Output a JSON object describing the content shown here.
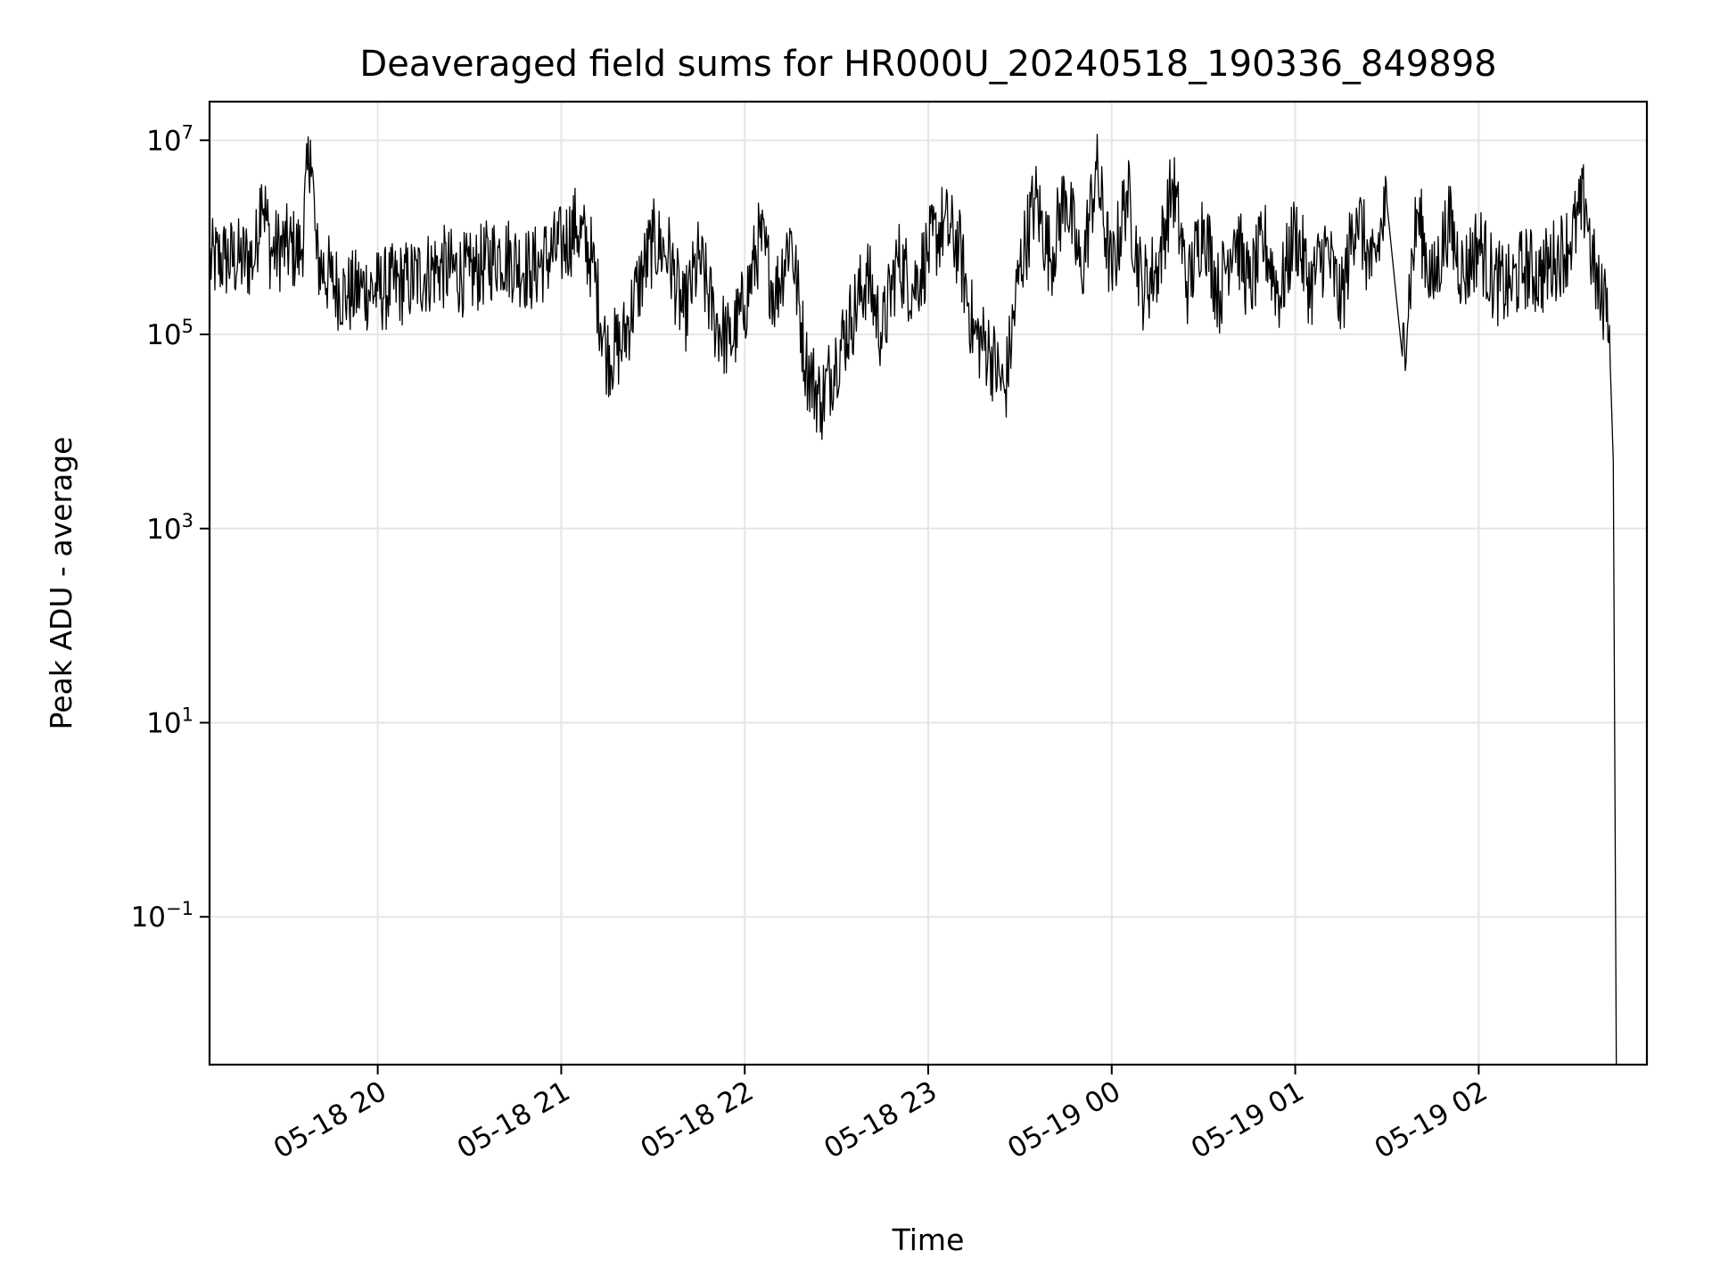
{
  "chart_data": {
    "type": "line",
    "title": "Deaveraged field sums for HR000U_20240518_190336_849898",
    "xlabel": "Time",
    "ylabel": "Peak ADU - average",
    "yscale": "log",
    "grid": true,
    "xlim": [
      "05-18 19:05",
      "05-19 02:55"
    ],
    "ylim": [
      0.003,
      25000000
    ],
    "x_ticks": [
      "05-18 20",
      "05-18 21",
      "05-18 22",
      "05-18 23",
      "05-19 00",
      "05-19 01",
      "05-19 02"
    ],
    "y_ticks": [
      {
        "base": "10",
        "exp": "7",
        "value": 10000000
      },
      {
        "base": "10",
        "exp": "5",
        "value": 100000
      },
      {
        "base": "10",
        "exp": "3",
        "value": 1000
      },
      {
        "base": "10",
        "exp": "1",
        "value": 10
      },
      {
        "base": "10",
        "exp": "−1",
        "value": 0.1
      }
    ],
    "series": [
      {
        "color": "#000000",
        "sampled_points": [
          [
            "05-18 19:05",
            550000
          ],
          [
            "05-18 19:10",
            600000
          ],
          [
            "05-18 19:15",
            580000
          ],
          [
            "05-18 19:20",
            620000
          ],
          [
            "05-18 19:22",
            3500000
          ],
          [
            "05-18 19:25",
            700000
          ],
          [
            "05-18 19:30",
            800000
          ],
          [
            "05-18 19:35",
            700000
          ],
          [
            "05-18 19:38",
            10000000
          ],
          [
            "05-18 19:40",
            600000
          ],
          [
            "05-18 19:45",
            350000
          ],
          [
            "05-18 19:50",
            250000
          ],
          [
            "05-18 19:55",
            300000
          ],
          [
            "05-18 20:00",
            280000
          ],
          [
            "05-18 20:10",
            350000
          ],
          [
            "05-18 20:20",
            500000
          ],
          [
            "05-18 20:30",
            400000
          ],
          [
            "05-18 20:40",
            700000
          ],
          [
            "05-18 20:50",
            450000
          ],
          [
            "05-18 21:00",
            800000
          ],
          [
            "05-18 21:05",
            1300000
          ],
          [
            "05-18 21:10",
            600000
          ],
          [
            "05-18 21:15",
            60000
          ],
          [
            "05-18 21:20",
            80000
          ],
          [
            "05-18 21:25",
            300000
          ],
          [
            "05-18 21:30",
            900000
          ],
          [
            "05-18 21:35",
            700000
          ],
          [
            "05-18 21:40",
            150000
          ],
          [
            "05-18 21:45",
            600000
          ],
          [
            "05-18 21:50",
            150000
          ],
          [
            "05-18 21:55",
            80000
          ],
          [
            "05-18 22:00",
            200000
          ],
          [
            "05-18 22:05",
            1000000
          ],
          [
            "05-18 22:10",
            250000
          ],
          [
            "05-18 22:15",
            1100000
          ],
          [
            "05-18 22:20",
            50000
          ],
          [
            "05-18 22:25",
            20000
          ],
          [
            "05-18 22:30",
            60000
          ],
          [
            "05-18 22:35",
            150000
          ],
          [
            "05-18 22:40",
            400000
          ],
          [
            "05-18 22:45",
            100000
          ],
          [
            "05-18 22:50",
            600000
          ],
          [
            "05-18 22:55",
            300000
          ],
          [
            "05-18 23:00",
            700000
          ],
          [
            "05-18 23:05",
            1400000
          ],
          [
            "05-18 23:10",
            800000
          ],
          [
            "05-18 23:15",
            100000
          ],
          [
            "05-18 23:20",
            70000
          ],
          [
            "05-18 23:25",
            25000
          ],
          [
            "05-18 23:30",
            500000
          ],
          [
            "05-18 23:35",
            2500000
          ],
          [
            "05-18 23:40",
            600000
          ],
          [
            "05-18 23:45",
            3000000
          ],
          [
            "05-18 23:50",
            400000
          ],
          [
            "05-18 23:55",
            5000000
          ],
          [
            "05-19 00:00",
            400000
          ],
          [
            "05-19 00:05",
            3000000
          ],
          [
            "05-19 00:10",
            300000
          ],
          [
            "05-19 00:15",
            500000
          ],
          [
            "05-19 00:20",
            3500000
          ],
          [
            "05-19 00:25",
            300000
          ],
          [
            "05-19 00:30",
            1500000
          ],
          [
            "05-19 00:35",
            250000
          ],
          [
            "05-19 00:40",
            1200000
          ],
          [
            "05-19 00:45",
            300000
          ],
          [
            "05-19 00:50",
            900000
          ],
          [
            "05-19 00:55",
            250000
          ],
          [
            "05-19 01:00",
            1200000
          ],
          [
            "05-19 01:05",
            300000
          ],
          [
            "05-19 01:10",
            800000
          ],
          [
            "05-19 01:15",
            200000
          ],
          [
            "05-19 01:20",
            2000000
          ],
          [
            "05-19 01:25",
            400000
          ],
          [
            "05-19 01:30",
            2200000
          ],
          [
            "05-19 01:35",
            60000
          ],
          [
            "05-19 01:40",
            1800000
          ],
          [
            "05-19 01:45",
            300000
          ],
          [
            "05-19 01:50",
            1500000
          ],
          [
            "05-19 01:55",
            400000
          ],
          [
            "05-19 02:00",
            900000
          ],
          [
            "05-19 02:05",
            350000
          ],
          [
            "05-19 02:10",
            300000
          ],
          [
            "05-19 02:15",
            500000
          ],
          [
            "05-19 02:20",
            400000
          ],
          [
            "05-19 02:25",
            600000
          ],
          [
            "05-19 02:30",
            900000
          ],
          [
            "05-19 02:35",
            2500000
          ],
          [
            "05-19 02:37",
            600000
          ],
          [
            "05-19 02:40",
            200000
          ],
          [
            "05-19 02:42",
            300000
          ],
          [
            "05-19 02:43",
            50000
          ],
          [
            "05-19 02:44",
            5000
          ],
          [
            "05-19 02:45",
            0.003
          ]
        ]
      }
    ]
  }
}
